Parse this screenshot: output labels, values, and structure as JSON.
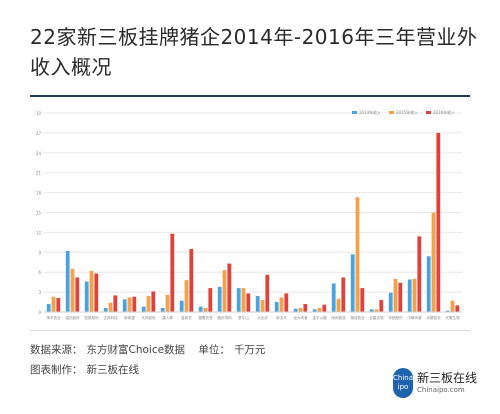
{
  "title": "22家新三板挂牌猪企2014年-2016年三年营业外收入概况",
  "footer": {
    "source_label": "数据来源：",
    "source_value": "东方财富Choice数据",
    "unit_label": "单位：",
    "unit_value": "千万元",
    "made_by_label": "图表制作：",
    "made_by_value": "新三板在线"
  },
  "logo": {
    "badge_top": "China",
    "badge_bottom": "ipo",
    "name": "新三板在线",
    "domain": "Chinaipo.com"
  },
  "colors": {
    "s2014": "#4aa3df",
    "s2015": "#f5a04b",
    "s2016": "#e0413b",
    "grid": "#e8e8e8",
    "axis_text": "#888888"
  },
  "chart_data": {
    "type": "bar",
    "legend_position": "top-right",
    "grid": true,
    "ylim": [
      0,
      30
    ],
    "yticks": [
      "0",
      "3",
      "6",
      "9",
      "12",
      "15",
      "18",
      "21",
      "24",
      "27",
      "30"
    ],
    "categories": [
      "禾丰牧业",
      "温氏股份",
      "牧原股份",
      "正邦科技",
      "新希望",
      "天邦股份",
      "唐人神",
      "金新农",
      "雏鹰农牧",
      "傲农饲料",
      "罗牛山",
      "大北农",
      "新五丰",
      "龙大肉食",
      "金字火腿",
      "雨润食品",
      "湘佳牧业",
      "巨星农牧",
      "华统股份",
      "中粮肉食",
      "京基智农",
      "天康生物"
    ],
    "series": [
      {
        "name": "2014年收入",
        "values": [
          1.2,
          9.2,
          4.6,
          0.6,
          1.9,
          0.8,
          0.6,
          1.7,
          0.8,
          3.8,
          3.6,
          2.4,
          1.5,
          0.5,
          0.4,
          4.3,
          8.7,
          0.4,
          2.9,
          4.9,
          8.4,
          0.2
        ]
      },
      {
        "name": "2015年收入",
        "values": [
          2.3,
          6.5,
          6.2,
          1.4,
          2.2,
          2.4,
          2.6,
          4.8,
          0.6,
          6.3,
          3.6,
          1.8,
          2.2,
          0.6,
          0.6,
          2.0,
          17.3,
          0.4,
          5.0,
          5.0,
          15.0,
          1.7
        ]
      },
      {
        "name": "2016年收入",
        "values": [
          2.1,
          5.2,
          5.8,
          2.5,
          2.3,
          3.1,
          11.8,
          9.5,
          3.6,
          7.3,
          2.8,
          5.6,
          2.8,
          1.2,
          1.1,
          5.2,
          3.6,
          1.8,
          4.4,
          11.4,
          27.0,
          1.0
        ]
      }
    ]
  }
}
